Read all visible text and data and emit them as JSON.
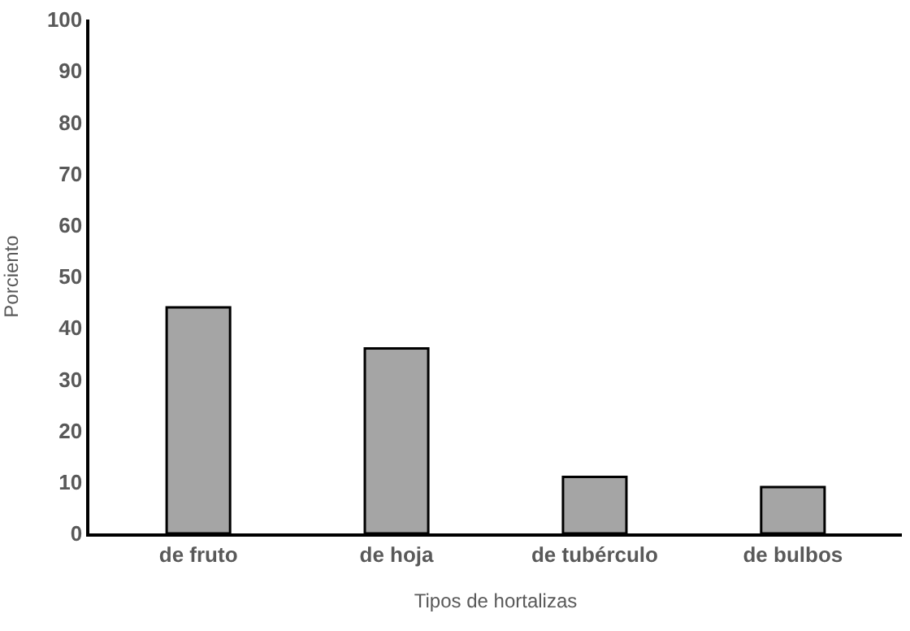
{
  "chart_data": {
    "type": "bar",
    "xlabel": "Tipos de hortalizas",
    "ylabel": "Porciento",
    "categories": [
      "de fruto",
      "de hoja",
      "de tubérculo",
      "de bulbos"
    ],
    "values": [
      44,
      36,
      11,
      9
    ],
    "color": "#a5a5a5",
    "ylim": [
      0,
      100
    ],
    "yticks": [
      0,
      10,
      20,
      30,
      40,
      50,
      60,
      70,
      80,
      90,
      100
    ],
    "grid": false,
    "legend": false
  }
}
